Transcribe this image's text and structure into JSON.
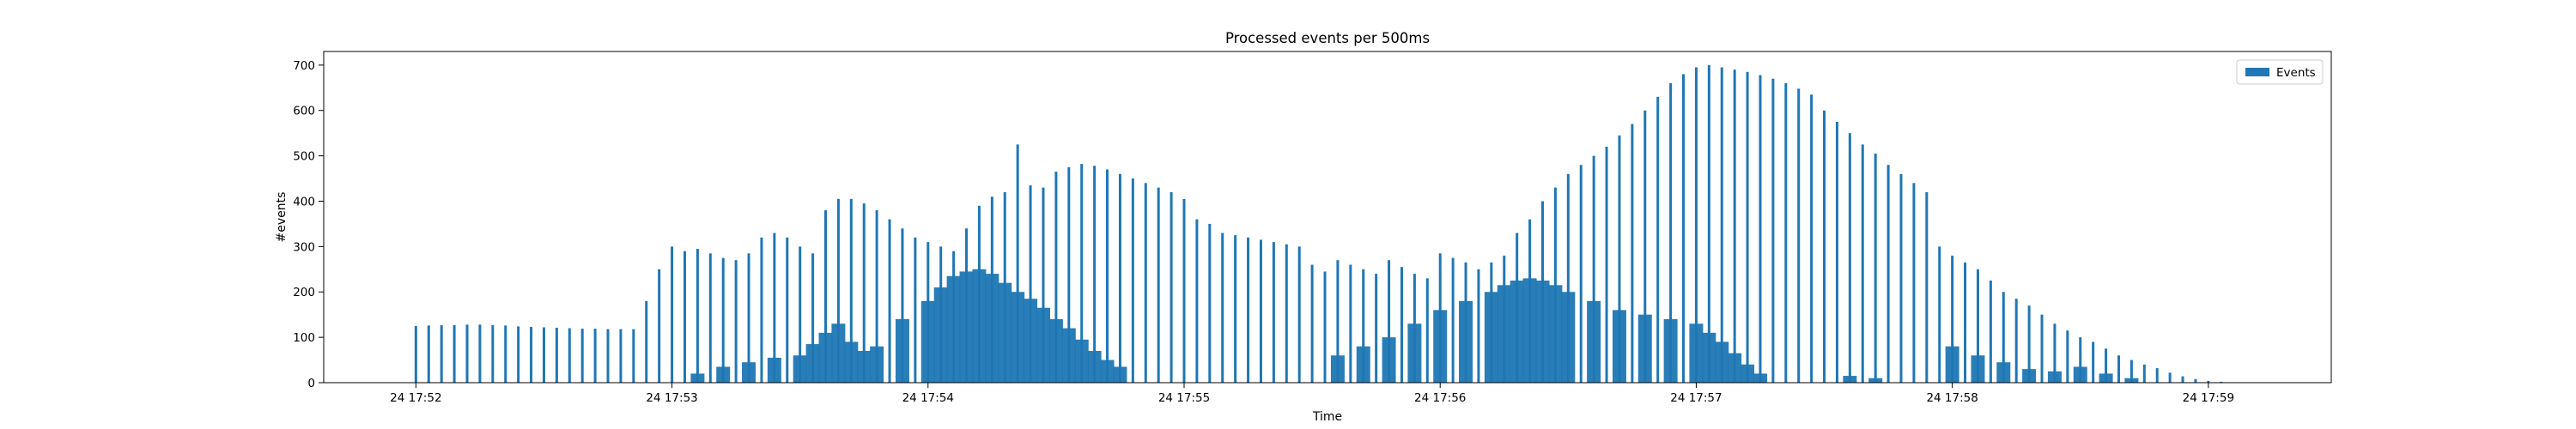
{
  "chart_data": {
    "type": "bar",
    "title": "Processed events per 500ms",
    "xlabel": "Time",
    "ylabel": "#events",
    "ylim": [
      0,
      730
    ],
    "y_ticks": [
      0,
      100,
      200,
      300,
      400,
      500,
      600,
      700
    ],
    "x_ticks": [
      "24 17:52",
      "24 17:53",
      "24 17:54",
      "24 17:55",
      "24 17:56",
      "24 17:57",
      "24 17:58",
      "24 17:59"
    ],
    "x_tick_minutes": [
      0,
      1,
      2,
      3,
      4,
      5,
      6,
      7
    ],
    "xlim_minutes": [
      -0.36,
      7.48
    ],
    "bar_width_seconds": 0.25,
    "grid": false,
    "legend_position": "upper right",
    "color": "#1f77b4",
    "series": [
      {
        "name": "Events",
        "note": "main envelope: 'Processed events per 500ms'",
        "points": [
          [
            0.0,
            125
          ],
          [
            0.05,
            126
          ],
          [
            0.1,
            127
          ],
          [
            0.15,
            127
          ],
          [
            0.2,
            128
          ],
          [
            0.25,
            128
          ],
          [
            0.3,
            127
          ],
          [
            0.35,
            126
          ],
          [
            0.4,
            124
          ],
          [
            0.45,
            123
          ],
          [
            0.5,
            122
          ],
          [
            0.55,
            121
          ],
          [
            0.6,
            120
          ],
          [
            0.65,
            119
          ],
          [
            0.7,
            119
          ],
          [
            0.75,
            118
          ],
          [
            0.8,
            118
          ],
          [
            0.85,
            118
          ],
          [
            0.9,
            180
          ],
          [
            0.95,
            250
          ],
          [
            1.0,
            300
          ],
          [
            1.05,
            290
          ],
          [
            1.1,
            295
          ],
          [
            1.15,
            285
          ],
          [
            1.2,
            275
          ],
          [
            1.25,
            270
          ],
          [
            1.3,
            285
          ],
          [
            1.35,
            320
          ],
          [
            1.4,
            330
          ],
          [
            1.45,
            320
          ],
          [
            1.5,
            300
          ],
          [
            1.55,
            285
          ],
          [
            1.6,
            380
          ],
          [
            1.65,
            405
          ],
          [
            1.7,
            405
          ],
          [
            1.75,
            395
          ],
          [
            1.8,
            380
          ],
          [
            1.85,
            360
          ],
          [
            1.9,
            340
          ],
          [
            1.95,
            320
          ],
          [
            2.0,
            310
          ],
          [
            2.05,
            300
          ],
          [
            2.1,
            290
          ],
          [
            2.15,
            340
          ],
          [
            2.2,
            390
          ],
          [
            2.25,
            410
          ],
          [
            2.3,
            420
          ],
          [
            2.35,
            525
          ],
          [
            2.4,
            435
          ],
          [
            2.45,
            430
          ],
          [
            2.5,
            465
          ],
          [
            2.55,
            475
          ],
          [
            2.6,
            482
          ],
          [
            2.65,
            478
          ],
          [
            2.7,
            470
          ],
          [
            2.75,
            460
          ],
          [
            2.8,
            450
          ],
          [
            2.85,
            440
          ],
          [
            2.9,
            430
          ],
          [
            2.95,
            420
          ],
          [
            3.0,
            405
          ],
          [
            3.05,
            360
          ],
          [
            3.1,
            350
          ],
          [
            3.15,
            330
          ],
          [
            3.2,
            325
          ],
          [
            3.25,
            320
          ],
          [
            3.3,
            315
          ],
          [
            3.35,
            310
          ],
          [
            3.4,
            305
          ],
          [
            3.45,
            300
          ],
          [
            3.5,
            260
          ],
          [
            3.55,
            245
          ],
          [
            3.6,
            270
          ],
          [
            3.65,
            260
          ],
          [
            3.7,
            250
          ],
          [
            3.75,
            240
          ],
          [
            3.8,
            270
          ],
          [
            3.85,
            255
          ],
          [
            3.9,
            240
          ],
          [
            3.95,
            230
          ],
          [
            4.0,
            285
          ],
          [
            4.05,
            275
          ],
          [
            4.1,
            265
          ],
          [
            4.15,
            250
          ],
          [
            4.2,
            265
          ],
          [
            4.25,
            280
          ],
          [
            4.3,
            330
          ],
          [
            4.35,
            360
          ],
          [
            4.4,
            400
          ],
          [
            4.45,
            430
          ],
          [
            4.5,
            460
          ],
          [
            4.55,
            480
          ],
          [
            4.6,
            500
          ],
          [
            4.65,
            520
          ],
          [
            4.7,
            545
          ],
          [
            4.75,
            570
          ],
          [
            4.8,
            600
          ],
          [
            4.85,
            630
          ],
          [
            4.9,
            660
          ],
          [
            4.95,
            680
          ],
          [
            5.0,
            695
          ],
          [
            5.05,
            700
          ],
          [
            5.1,
            695
          ],
          [
            5.15,
            690
          ],
          [
            5.2,
            685
          ],
          [
            5.25,
            678
          ],
          [
            5.3,
            670
          ],
          [
            5.35,
            660
          ],
          [
            5.4,
            648
          ],
          [
            5.45,
            635
          ],
          [
            5.5,
            600
          ],
          [
            5.55,
            575
          ],
          [
            5.6,
            550
          ],
          [
            5.65,
            525
          ],
          [
            5.7,
            505
          ],
          [
            5.75,
            480
          ],
          [
            5.8,
            460
          ],
          [
            5.85,
            440
          ],
          [
            5.9,
            420
          ],
          [
            5.95,
            300
          ],
          [
            6.0,
            280
          ],
          [
            6.05,
            265
          ],
          [
            6.1,
            250
          ],
          [
            6.15,
            225
          ],
          [
            6.2,
            200
          ],
          [
            6.25,
            185
          ],
          [
            6.3,
            170
          ],
          [
            6.35,
            150
          ],
          [
            6.4,
            130
          ],
          [
            6.45,
            115
          ],
          [
            6.5,
            100
          ],
          [
            6.55,
            90
          ],
          [
            6.6,
            75
          ],
          [
            6.65,
            60
          ],
          [
            6.7,
            50
          ],
          [
            6.75,
            40
          ],
          [
            6.8,
            32
          ],
          [
            6.85,
            22
          ],
          [
            6.9,
            14
          ],
          [
            6.95,
            8
          ],
          [
            7.0,
            4
          ],
          [
            7.05,
            2
          ]
        ]
      },
      {
        "name": "",
        "note": "second, denser blue layer near bottom",
        "points": [
          [
            1.1,
            20
          ],
          [
            1.2,
            35
          ],
          [
            1.3,
            45
          ],
          [
            1.4,
            55
          ],
          [
            1.5,
            60
          ],
          [
            1.55,
            85
          ],
          [
            1.6,
            110
          ],
          [
            1.65,
            130
          ],
          [
            1.7,
            90
          ],
          [
            1.75,
            70
          ],
          [
            1.8,
            80
          ],
          [
            1.9,
            140
          ],
          [
            2.0,
            180
          ],
          [
            2.05,
            210
          ],
          [
            2.1,
            235
          ],
          [
            2.15,
            245
          ],
          [
            2.2,
            250
          ],
          [
            2.25,
            240
          ],
          [
            2.3,
            220
          ],
          [
            2.35,
            200
          ],
          [
            2.4,
            185
          ],
          [
            2.45,
            165
          ],
          [
            2.5,
            140
          ],
          [
            2.55,
            120
          ],
          [
            2.6,
            95
          ],
          [
            2.65,
            70
          ],
          [
            2.7,
            50
          ],
          [
            2.75,
            35
          ],
          [
            3.6,
            60
          ],
          [
            3.7,
            80
          ],
          [
            3.8,
            100
          ],
          [
            3.9,
            130
          ],
          [
            4.0,
            160
          ],
          [
            4.1,
            180
          ],
          [
            4.2,
            200
          ],
          [
            4.25,
            215
          ],
          [
            4.3,
            225
          ],
          [
            4.35,
            230
          ],
          [
            4.4,
            225
          ],
          [
            4.45,
            215
          ],
          [
            4.5,
            200
          ],
          [
            4.6,
            180
          ],
          [
            4.7,
            160
          ],
          [
            4.8,
            150
          ],
          [
            4.9,
            140
          ],
          [
            5.0,
            130
          ],
          [
            5.05,
            110
          ],
          [
            5.1,
            90
          ],
          [
            5.15,
            65
          ],
          [
            5.2,
            40
          ],
          [
            5.25,
            20
          ],
          [
            5.6,
            15
          ],
          [
            5.7,
            10
          ],
          [
            6.0,
            80
          ],
          [
            6.1,
            60
          ],
          [
            6.2,
            45
          ],
          [
            6.3,
            30
          ],
          [
            6.4,
            25
          ],
          [
            6.5,
            35
          ],
          [
            6.6,
            20
          ],
          [
            6.7,
            10
          ]
        ]
      }
    ]
  }
}
